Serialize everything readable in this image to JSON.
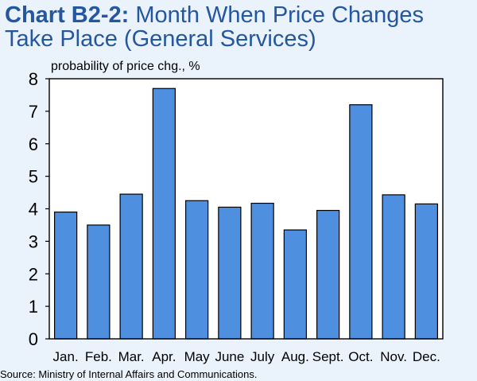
{
  "title": {
    "prefix": "Chart B2-2:",
    "line1_rest": " Month When Price Changes",
    "line2": "Take Place (General Services)"
  },
  "colors": {
    "title": "#24579f",
    "bar_fill": "#4f8fe0",
    "bar_stroke": "#000000",
    "background": "#eaf2fb",
    "plot_background": "#ffffff"
  },
  "chart_data": {
    "type": "bar",
    "ylabel": "probability of price chg., %",
    "ylim": [
      0,
      8
    ],
    "yticks": [
      0,
      1,
      2,
      3,
      4,
      5,
      6,
      7,
      8
    ],
    "grid": false,
    "categories": [
      "Jan.",
      "Feb.",
      "Mar.",
      "Apr.",
      "May",
      "June",
      "July",
      "Aug.",
      "Sept.",
      "Oct.",
      "Nov.",
      "Dec."
    ],
    "values": [
      3.9,
      3.5,
      4.45,
      7.7,
      4.25,
      4.05,
      4.17,
      3.35,
      3.95,
      7.2,
      4.43,
      4.15
    ]
  },
  "source": "Source: Ministry of Internal Affairs and Communications."
}
